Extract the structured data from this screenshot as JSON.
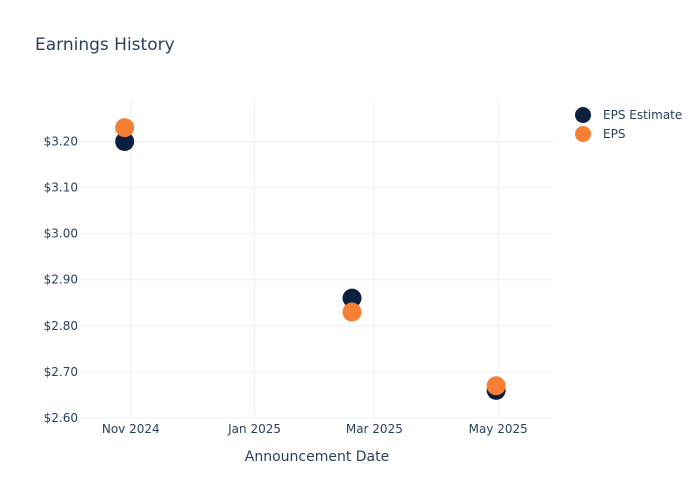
{
  "chart_data": {
    "type": "scatter",
    "title": "Earnings History",
    "xlabel": "Announcement Date",
    "ylabel": "",
    "x_axis_type": "date",
    "xlim": [
      "2024-10-07",
      "2025-05-28"
    ],
    "ylim": [
      2.6,
      3.29
    ],
    "x_ticks": [
      {
        "date": "2024-11-01",
        "label": "Nov 2024"
      },
      {
        "date": "2025-01-01",
        "label": "Jan 2025"
      },
      {
        "date": "2025-03-01",
        "label": "Mar 2025"
      },
      {
        "date": "2025-05-01",
        "label": "May 2025"
      }
    ],
    "y_ticks": [
      {
        "value": 2.6,
        "label": "$2.60"
      },
      {
        "value": 2.7,
        "label": "$2.70"
      },
      {
        "value": 2.8,
        "label": "$2.80"
      },
      {
        "value": 2.9,
        "label": "$2.90"
      },
      {
        "value": 3.0,
        "label": "$3.00"
      },
      {
        "value": 3.1,
        "label": "$3.10"
      },
      {
        "value": 3.2,
        "label": "$3.20"
      }
    ],
    "grid": true,
    "legend_position": "top-right",
    "series": [
      {
        "name": "EPS Estimate",
        "color": "#0c1f3f",
        "points": [
          {
            "x": "2024-10-29",
            "y": 3.2
          },
          {
            "x": "2025-02-18",
            "y": 2.86
          },
          {
            "x": "2025-04-30",
            "y": 2.66
          }
        ]
      },
      {
        "name": "EPS",
        "color": "#f47f35",
        "points": [
          {
            "x": "2024-10-29",
            "y": 3.23
          },
          {
            "x": "2025-02-18",
            "y": 2.83
          },
          {
            "x": "2025-04-30",
            "y": 2.67
          }
        ]
      }
    ]
  }
}
